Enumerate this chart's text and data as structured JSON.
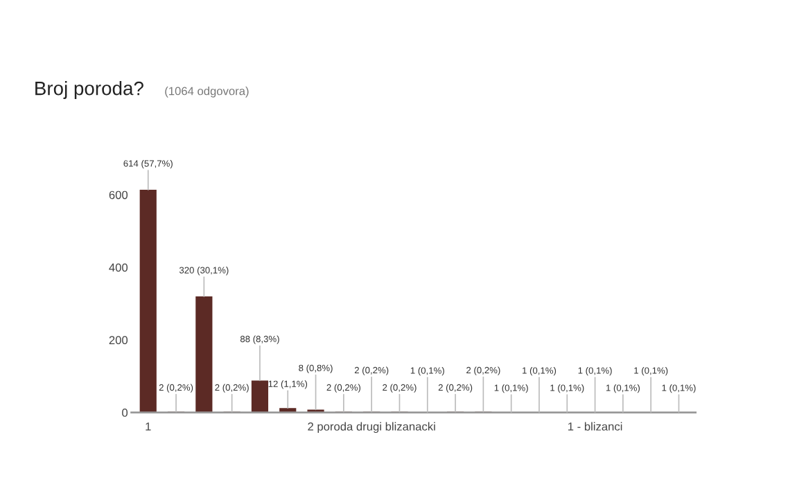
{
  "chart_data": {
    "type": "bar",
    "title": "Broj poroda?",
    "subtitle": "(1064 odgovora)",
    "categories": [
      "1",
      null,
      null,
      null,
      null,
      null,
      null,
      null,
      "2 poroda drugi blizanacki",
      null,
      null,
      null,
      null,
      null,
      null,
      null,
      "1 - blizanci",
      null,
      null,
      null
    ],
    "values": [
      614,
      2,
      320,
      2,
      88,
      12,
      8,
      2,
      2,
      2,
      1,
      2,
      2,
      1,
      1,
      1,
      1,
      1,
      1,
      1
    ],
    "value_labels": [
      "614 (57,7%)",
      "2 (0,2%)",
      "320 (30,1%)",
      "2 (0,2%)",
      "88 (8,3%)",
      "12 (1,1%)",
      "8 (0,8%)",
      "2 (0,2%)",
      "2 (0,2%)",
      "2 (0,2%)",
      "1 (0,1%)",
      "2 (0,2%)",
      "2 (0,2%)",
      "1 (0,1%)",
      "1 (0,1%)",
      "1 (0,1%)",
      "1 (0,1%)",
      "1 (0,1%)",
      "1 (0,1%)",
      "1 (0,1%)"
    ],
    "color": "#5c2a25",
    "ylim": [
      0,
      620
    ],
    "yticks": [
      0,
      200,
      400,
      600
    ],
    "grid": false,
    "legend": false
  }
}
